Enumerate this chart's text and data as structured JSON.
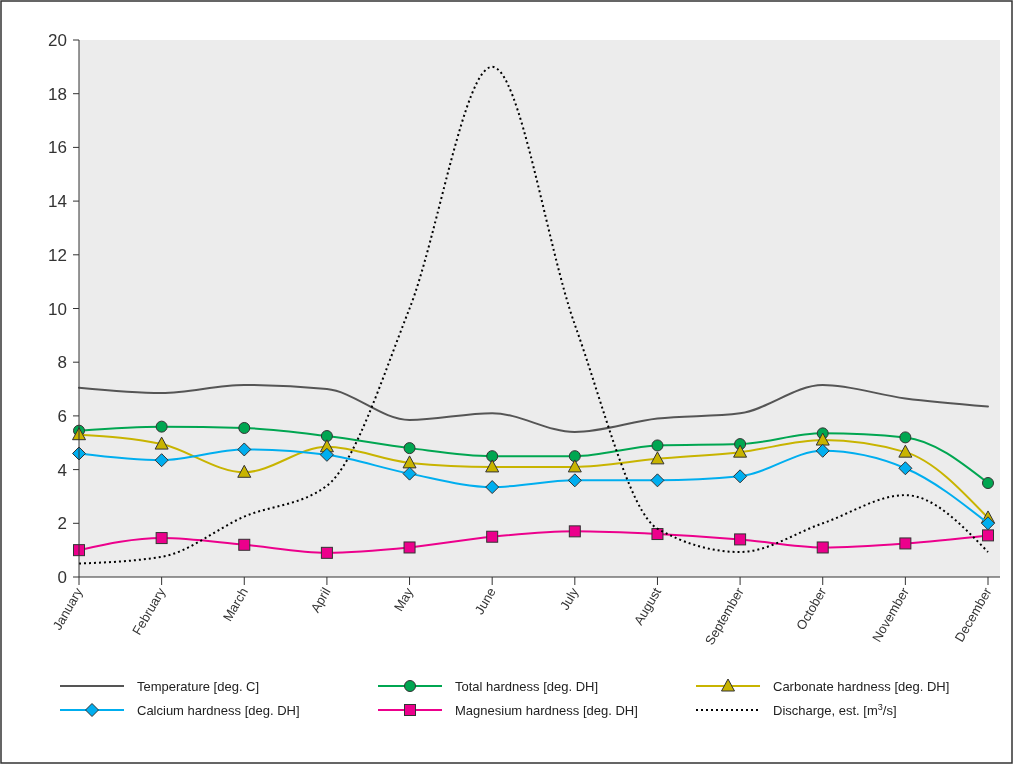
{
  "chart_data": {
    "type": "line",
    "categories": [
      "January",
      "February",
      "March",
      "April",
      "May",
      "June",
      "July",
      "August",
      "September",
      "October",
      "November",
      "December"
    ],
    "ylim": [
      0,
      20
    ],
    "yticks": [
      0,
      2,
      4,
      6,
      8,
      10,
      12,
      14,
      16,
      18,
      20
    ],
    "grid": false,
    "legend": "bottom",
    "series": [
      {
        "name": "Temperature [deg. C]",
        "color": "#555555",
        "marker": "none",
        "line_style": "solid",
        "values": [
          7.05,
          6.85,
          7.15,
          7.0,
          5.85,
          6.1,
          5.4,
          5.9,
          6.1,
          7.15,
          6.65,
          6.35
        ]
      },
      {
        "name": "Total hardness [deg. DH]",
        "color": "#00a651",
        "marker": "circle",
        "line_style": "solid",
        "values": [
          5.45,
          5.6,
          5.55,
          5.25,
          4.8,
          4.5,
          4.5,
          4.9,
          4.95,
          5.35,
          5.2,
          3.5
        ]
      },
      {
        "name": "Carbonate hardness [deg. DH]",
        "color": "#c8b400",
        "marker": "triangle",
        "line_style": "solid",
        "values": [
          5.3,
          4.95,
          3.9,
          4.85,
          4.25,
          4.1,
          4.1,
          4.4,
          4.65,
          5.1,
          4.65,
          2.2
        ]
      },
      {
        "name": "Calcium hardness [deg. DH]",
        "color": "#00aeef",
        "marker": "diamond",
        "line_style": "solid",
        "values": [
          4.6,
          4.35,
          4.75,
          4.55,
          3.85,
          3.35,
          3.6,
          3.6,
          3.75,
          4.7,
          4.05,
          2.0
        ]
      },
      {
        "name": "Magnesium hardness [deg. DH]",
        "color": "#ec008c",
        "marker": "square",
        "line_style": "solid",
        "values": [
          1.0,
          1.45,
          1.2,
          0.9,
          1.1,
          1.5,
          1.7,
          1.6,
          1.4,
          1.1,
          1.25,
          1.55
        ]
      },
      {
        "name": "Discharge, est. [m$^{3}$/s]",
        "color": "#000000",
        "marker": "none",
        "line_style": "dotted",
        "values": [
          0.5,
          0.75,
          2.25,
          3.4,
          10.0,
          19.0,
          9.4,
          1.8,
          0.93,
          2.0,
          3.05,
          0.93
        ]
      }
    ]
  }
}
